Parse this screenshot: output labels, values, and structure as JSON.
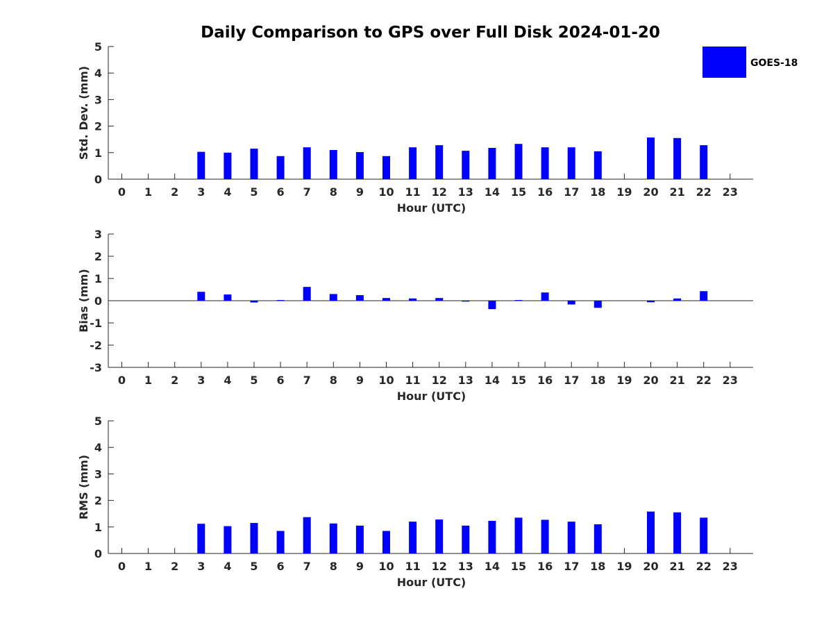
{
  "title": "Daily Comparison to GPS over Full Disk 2024-01-20",
  "legend": {
    "label": "GOES-18",
    "color": "#0000ff"
  },
  "bar_color": "#0000ff",
  "chart_data": [
    {
      "type": "bar",
      "name": "std",
      "xlabel": "Hour (UTC)",
      "ylabel": "Std. Dev. (mm)",
      "ylim": [
        0,
        5
      ],
      "yticks": [
        "0",
        "1",
        "2",
        "3",
        "4",
        "5"
      ],
      "categories": [
        "0",
        "1",
        "2",
        "3",
        "4",
        "5",
        "6",
        "7",
        "8",
        "9",
        "10",
        "11",
        "12",
        "13",
        "14",
        "15",
        "16",
        "17",
        "18",
        "19",
        "20",
        "21",
        "22",
        "23"
      ],
      "values": [
        null,
        null,
        null,
        1.03,
        1.0,
        1.15,
        0.87,
        1.2,
        1.1,
        1.02,
        0.87,
        1.2,
        1.28,
        1.07,
        1.18,
        1.33,
        1.2,
        1.2,
        1.05,
        null,
        1.57,
        1.55,
        1.28,
        null
      ]
    },
    {
      "type": "bar",
      "name": "bias",
      "xlabel": "Hour (UTC)",
      "ylabel": "Bias (mm)",
      "ylim": [
        -3,
        3
      ],
      "yticks": [
        "-3",
        "-2",
        "-1",
        "0",
        "1",
        "2",
        "3"
      ],
      "categories": [
        "0",
        "1",
        "2",
        "3",
        "4",
        "5",
        "6",
        "7",
        "8",
        "9",
        "10",
        "11",
        "12",
        "13",
        "14",
        "15",
        "16",
        "17",
        "18",
        "19",
        "20",
        "21",
        "22",
        "23"
      ],
      "values": [
        null,
        null,
        null,
        0.4,
        0.28,
        -0.08,
        0.03,
        0.62,
        0.3,
        0.25,
        0.12,
        0.1,
        0.12,
        -0.04,
        -0.38,
        0.03,
        0.37,
        -0.17,
        -0.32,
        null,
        -0.07,
        0.1,
        0.43,
        null
      ]
    },
    {
      "type": "bar",
      "name": "rms",
      "xlabel": "Hour (UTC)",
      "ylabel": "RMS (mm)",
      "ylim": [
        0,
        5
      ],
      "yticks": [
        "0",
        "1",
        "2",
        "3",
        "4",
        "5"
      ],
      "categories": [
        "0",
        "1",
        "2",
        "3",
        "4",
        "5",
        "6",
        "7",
        "8",
        "9",
        "10",
        "11",
        "12",
        "13",
        "14",
        "15",
        "16",
        "17",
        "18",
        "19",
        "20",
        "21",
        "22",
        "23"
      ],
      "values": [
        null,
        null,
        null,
        1.12,
        1.03,
        1.15,
        0.85,
        1.37,
        1.13,
        1.05,
        0.85,
        1.2,
        1.28,
        1.05,
        1.23,
        1.35,
        1.27,
        1.2,
        1.1,
        null,
        1.58,
        1.55,
        1.35,
        null
      ]
    }
  ]
}
